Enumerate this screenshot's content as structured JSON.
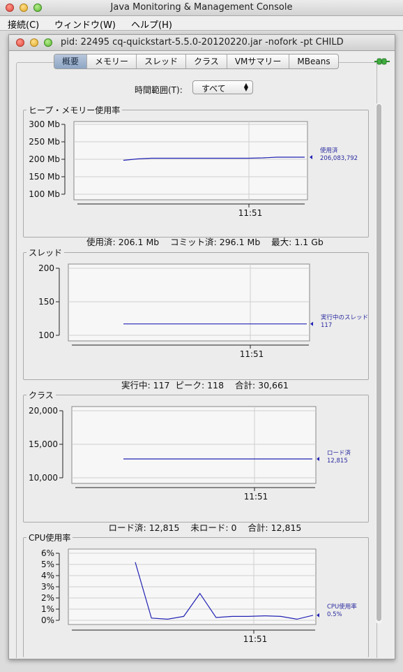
{
  "outer_window": {
    "title": "Java Monitoring & Management Console"
  },
  "menubar": {
    "items": [
      "接続(C)",
      "ウィンドウ(W)",
      "ヘルプ(H)"
    ]
  },
  "inner_window": {
    "title": "pid: 22495 cq-quickstart-5.5.0-20120220.jar -nofork -pt CHILD"
  },
  "tabs": [
    {
      "label": "概要",
      "selected": true
    },
    {
      "label": "メモリー",
      "selected": false
    },
    {
      "label": "スレッド",
      "selected": false
    },
    {
      "label": "クラス",
      "selected": false
    },
    {
      "label": "VMサマリー",
      "selected": false
    },
    {
      "label": "MBeans",
      "selected": false
    }
  ],
  "time_range": {
    "label": "時間範囲(T):",
    "value": "すべて"
  },
  "colors": {
    "series": "#2323b4",
    "selected_tab": "#9fb4d0",
    "connected_icon": "#3fae3f"
  },
  "icons": {
    "connection": "connected-plug-icon",
    "legend_marker": "triangle-left-icon",
    "select_arrows": "updown-arrows-icon"
  },
  "chart_data": [
    {
      "type": "line",
      "title": "ヒープ・メモリー使用率",
      "y_ticks": [
        "300 Mb",
        "250 Mb",
        "200 Mb",
        "150 Mb",
        "100 Mb"
      ],
      "y_tick_values": [
        300,
        250,
        200,
        150,
        100
      ],
      "ylim": [
        100,
        300
      ],
      "x_ticks": [
        "11:51"
      ],
      "series": [
        {
          "name": "使用済",
          "values": [
            197,
            201,
            203,
            203,
            203,
            203,
            203,
            203,
            203,
            203,
            204,
            206,
            206,
            206
          ]
        }
      ],
      "legend": {
        "name": "使用済",
        "value": "206,083,792",
        "position": "right"
      },
      "summary": [
        {
          "label": "使用済:",
          "value": "206.1 Mb"
        },
        {
          "label": "コミット済:",
          "value": "296.1 Mb"
        },
        {
          "label": "最大:",
          "value": "1.1 Gb"
        }
      ]
    },
    {
      "type": "line",
      "title": "スレッド",
      "y_ticks": [
        "200",
        "150",
        "100"
      ],
      "y_tick_values": [
        200,
        150,
        100
      ],
      "ylim": [
        100,
        200
      ],
      "x_ticks": [
        "11:51"
      ],
      "series": [
        {
          "name": "実行中のスレッド",
          "values": [
            117,
            117,
            117,
            117,
            117,
            117,
            117,
            117,
            117,
            117,
            117,
            117
          ]
        }
      ],
      "legend": {
        "name": "実行中のスレッド",
        "value": "117",
        "position": "right"
      },
      "summary": [
        {
          "label": "実行中:",
          "value": "117"
        },
        {
          "label": "ピーク:",
          "value": "118"
        },
        {
          "label": "合計:",
          "value": "30,661"
        }
      ]
    },
    {
      "type": "line",
      "title": "クラス",
      "y_ticks": [
        "20,000",
        "15,000",
        "10,000"
      ],
      "y_tick_values": [
        20000,
        15000,
        10000
      ],
      "ylim": [
        10000,
        20000
      ],
      "x_ticks": [
        "11:51"
      ],
      "series": [
        {
          "name": "ロード済",
          "values": [
            12815,
            12815,
            12815,
            12815,
            12815,
            12815,
            12815,
            12815,
            12815,
            12815,
            12815,
            12815
          ]
        }
      ],
      "legend": {
        "name": "ロード済",
        "value": "12,815",
        "position": "right"
      },
      "summary": [
        {
          "label": "ロード済:",
          "value": "12,815"
        },
        {
          "label": "未ロード:",
          "value": "0"
        },
        {
          "label": "合計:",
          "value": "12,815"
        }
      ]
    },
    {
      "type": "line",
      "title": "CPU使用率",
      "y_ticks": [
        "6%",
        "5%",
        "4%",
        "3%",
        "2%",
        "1%",
        "0%"
      ],
      "y_tick_values": [
        6,
        5,
        4,
        3,
        2,
        1,
        0
      ],
      "ylim": [
        0,
        6
      ],
      "x_ticks": [
        "11:51"
      ],
      "series": [
        {
          "name": "CPU使用率",
          "values": [
            5.2,
            0.2,
            0.1,
            0.35,
            2.4,
            0.25,
            0.35,
            0.35,
            0.4,
            0.35,
            0.1,
            0.45
          ]
        }
      ],
      "legend": {
        "name": "CPU使用率",
        "value": "0.5%",
        "position": "right"
      },
      "summary": []
    }
  ]
}
